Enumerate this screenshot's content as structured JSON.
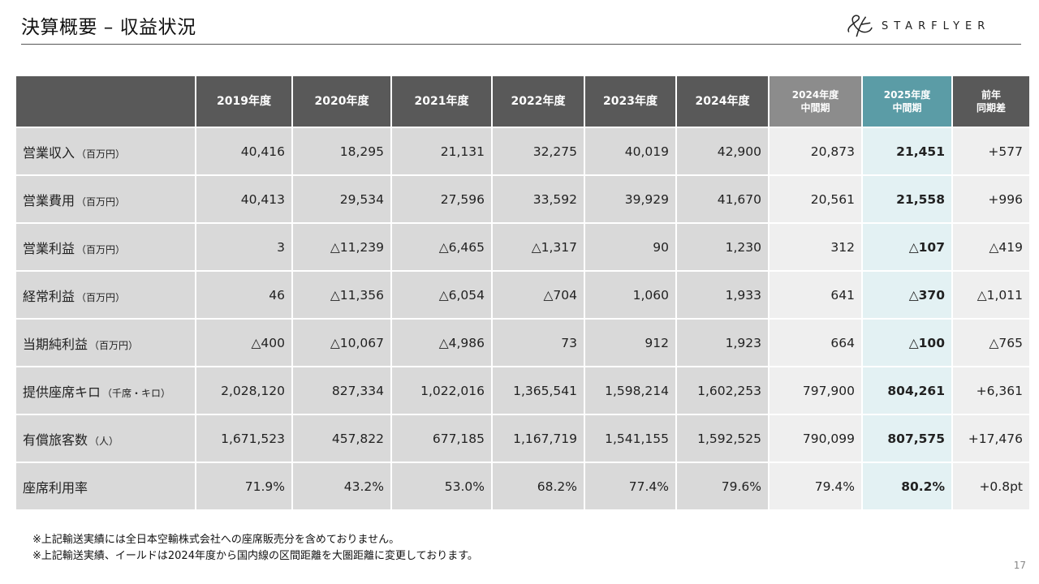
{
  "header": {
    "title": "決算概要 – 収益状況",
    "brand": "STARFLYER"
  },
  "table": {
    "columns": [
      "",
      "2019年度",
      "2020年度",
      "2021年度",
      "2022年度",
      "2023年度",
      "2024年度",
      "2024年度\n中間期",
      "2025年度\n中間期",
      "前年\n同期差"
    ],
    "rows": [
      {
        "label": "営業収入",
        "unit": "（百万円）",
        "values": [
          "40,416",
          "18,295",
          "21,131",
          "32,275",
          "40,019",
          "42,900",
          "20,873",
          "21,451",
          "+577"
        ]
      },
      {
        "label": "営業費用",
        "unit": "（百万円）",
        "values": [
          "40,413",
          "29,534",
          "27,596",
          "33,592",
          "39,929",
          "41,670",
          "20,561",
          "21,558",
          "+996"
        ]
      },
      {
        "label": "営業利益",
        "unit": "（百万円）",
        "values": [
          "3",
          "△11,239",
          "△6,465",
          "△1,317",
          "90",
          "1,230",
          "312",
          "△107",
          "△419"
        ]
      },
      {
        "label": "経常利益",
        "unit": "（百万円）",
        "values": [
          "46",
          "△11,356",
          "△6,054",
          "△704",
          "1,060",
          "1,933",
          "641",
          "△370",
          "△1,011"
        ]
      },
      {
        "label": "当期純利益",
        "unit": "（百万円）",
        "values": [
          "△400",
          "△10,067",
          "△4,986",
          "73",
          "912",
          "1,923",
          "664",
          "△100",
          "△765"
        ]
      },
      {
        "label": "提供座席キロ",
        "unit": "（千席・キロ）",
        "values": [
          "2,028,120",
          "827,334",
          "1,022,016",
          "1,365,541",
          "1,598,214",
          "1,602,253",
          "797,900",
          "804,261",
          "+6,361"
        ]
      },
      {
        "label": "有償旅客数",
        "unit": "（人）",
        "values": [
          "1,671,523",
          "457,822",
          "677,185",
          "1,167,719",
          "1,541,155",
          "1,592,525",
          "790,099",
          "807,575",
          "+17,476"
        ]
      },
      {
        "label": "座席利用率",
        "unit": "",
        "values": [
          "71.9%",
          "43.2%",
          "53.0%",
          "68.2%",
          "77.4%",
          "79.6%",
          "79.4%",
          "80.2%",
          "+0.8pt"
        ]
      }
    ]
  },
  "notes": [
    "※上記輸送実績には全日本空輸株式会社への座席販売分を含めておりません。",
    "※上記輸送実績、イールドは2024年度から国内線の区間距離を大圏距離に変更しております。"
  ],
  "page_number": "17",
  "colors": {
    "header_bg": "#595959",
    "prev_mid_header": "#8c8c8c",
    "cur_mid_header": "#5b9ca6",
    "negative": "#cc1f1f"
  }
}
